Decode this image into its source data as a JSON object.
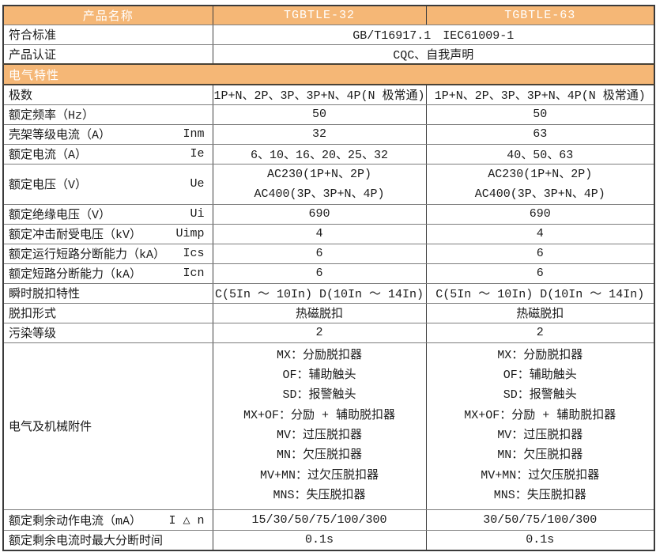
{
  "colors": {
    "header_bg": "#f5b776",
    "header_text": "#ffffff",
    "border_dark": "#3f3f3f",
    "border_gray": "#7d7d7d",
    "body_text": "#1a1a1a"
  },
  "header": {
    "col1": "产品名称",
    "col2": "TGBTLE-32",
    "col3": "TGBTLE-63"
  },
  "top_rows": [
    {
      "label": "符合标准",
      "value": "GB/T16917.1　IEC61009-1"
    },
    {
      "label": "产品认证",
      "value": "CQC、自我声明"
    }
  ],
  "section": {
    "title": "电气特性"
  },
  "rows": [
    {
      "label": "极数",
      "symbol": "",
      "v1": "1P+N、2P、3P、3P+N、4P(N 极常通)",
      "v2": "1P+N、2P、3P、3P+N、4P(N 极常通)"
    },
    {
      "label": "额定频率（Hz）",
      "symbol": "",
      "v1": "50",
      "v2": "50"
    },
    {
      "label": "壳架等级电流（A）",
      "symbol": "Inm",
      "v1": "32",
      "v2": "63"
    },
    {
      "label": "额定电流（A）",
      "symbol": "Ie",
      "v1": "6、10、16、20、25、32",
      "v2": "40、50、63"
    },
    {
      "label": "额定电压（V）",
      "symbol": "Ue",
      "v1_line1": "AC230(1P+N、2P)",
      "v1_line2": "AC400(3P、3P+N、4P)",
      "v2_line1": "AC230(1P+N、2P)",
      "v2_line2": "AC400(3P、3P+N、4P)"
    },
    {
      "label": "额定绝缘电压（V）",
      "symbol": "Ui",
      "v1": "690",
      "v2": "690"
    },
    {
      "label": "额定冲击耐受电压（kV）",
      "symbol": "Uimp",
      "v1": "4",
      "v2": "4"
    },
    {
      "label": "额定运行短路分断能力（kA）",
      "symbol": "Ics",
      "v1": "6",
      "v2": "6"
    },
    {
      "label": "额定短路分断能力（kA）",
      "symbol": "Icn",
      "v1": "6",
      "v2": "6"
    },
    {
      "label": "瞬时脱扣特性",
      "symbol": "",
      "v1": "C(5In ～ 10In) D(10In ～ 14In)",
      "v2": "C(5In ～ 10In) D(10In ～ 14In)"
    },
    {
      "label": "脱扣形式",
      "symbol": "",
      "v1": "热磁脱扣",
      "v2": "热磁脱扣"
    },
    {
      "label": "污染等级",
      "symbol": "",
      "v1": "2",
      "v2": "2"
    }
  ],
  "accessories": {
    "label": "电气及机械附件",
    "items": [
      "MX：分励脱扣器",
      "OF：辅助触头",
      "SD：报警触头",
      "MX+OF：分励 + 辅助脱扣器",
      "MV：过压脱扣器",
      "MN：欠压脱扣器",
      "MV+MN：过欠压脱扣器",
      "MNS：失压脱扣器"
    ]
  },
  "bottom_rows": [
    {
      "label": "额定剩余动作电流（mA）",
      "symbol": "I △ n",
      "v1": "15/30/50/75/100/300",
      "v2": "30/50/75/100/300"
    },
    {
      "label": "额定剩余电流时最大分断时间",
      "symbol": "",
      "v1": "0.1s",
      "v2": "0.1s"
    }
  ]
}
